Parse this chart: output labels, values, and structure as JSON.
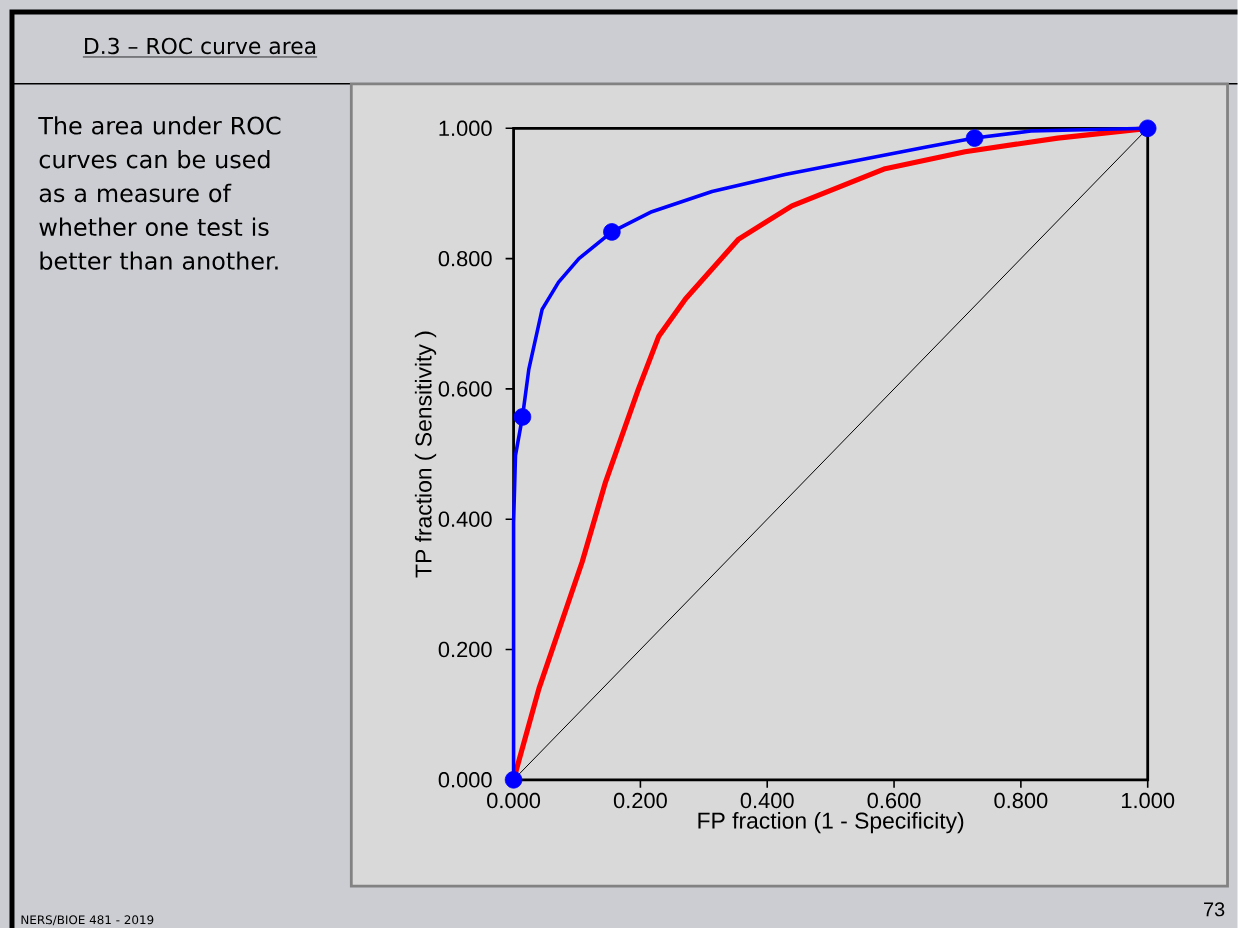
{
  "chart_data": {
    "type": "line",
    "title": "D.3 – ROC curve area",
    "xlabel": "FP fraction (1 - Specificity)",
    "ylabel": "TP fraction ( Sensitivity )",
    "xlim": [
      0,
      1
    ],
    "ylim": [
      0,
      1
    ],
    "xticks": [
      {
        "value": 0,
        "label": "0.000"
      },
      {
        "value": 0.2,
        "label": "0.200"
      },
      {
        "value": 0.4,
        "label": "0.400"
      },
      {
        "value": 0.6,
        "label": "0.600"
      },
      {
        "value": 0.8,
        "label": "0.800"
      },
      {
        "value": 1,
        "label": "1.000"
      }
    ],
    "yticks": [
      {
        "value": 0,
        "label": "0.000"
      },
      {
        "value": 0.2,
        "label": "0.200"
      },
      {
        "value": 0.4,
        "label": "0.400"
      },
      {
        "value": 0.6,
        "label": "0.600"
      },
      {
        "value": 0.8,
        "label": "0.800"
      },
      {
        "value": 1,
        "label": "1.000"
      }
    ],
    "grid": false,
    "series": [
      {
        "color": "#000000",
        "x": [
          0,
          1
        ],
        "values": [
          0,
          1
        ]
      },
      {
        "color": "#ff0000",
        "x": [
          0,
          0.04,
          0.108,
          0.145,
          0.197,
          0.229,
          0.271,
          0.355,
          0.439,
          0.586,
          0.712,
          0.858,
          1
        ],
        "values": [
          0,
          0.14,
          0.334,
          0.457,
          0.6,
          0.681,
          0.738,
          0.83,
          0.881,
          0.938,
          0.964,
          0.985,
          1
        ]
      },
      {
        "color": "#0000ff",
        "x": [
          0,
          0,
          0.003,
          0.014,
          0.024,
          0.045,
          0.071,
          0.103,
          0.155,
          0.218,
          0.313,
          0.428,
          0.586,
          0.649,
          0.727,
          0.816,
          1
        ],
        "values": [
          0,
          0.395,
          0.498,
          0.557,
          0.63,
          0.722,
          0.764,
          0.8,
          0.841,
          0.872,
          0.903,
          0.929,
          0.959,
          0.971,
          0.985,
          0.996,
          1
        ]
      },
      {
        "type": "scatter",
        "marker": "circle",
        "color": "#0000ff",
        "x": [
          0,
          0.014,
          0.155,
          0.727,
          1
        ],
        "values": [
          0,
          0.557,
          0.841,
          0.985,
          1
        ]
      }
    ],
    "annotations": [
      "The area under ROC curves can be used as a measure of whether one test is better than another.",
      "NERS/BIOE 481 - 2019",
      "73"
    ]
  }
}
